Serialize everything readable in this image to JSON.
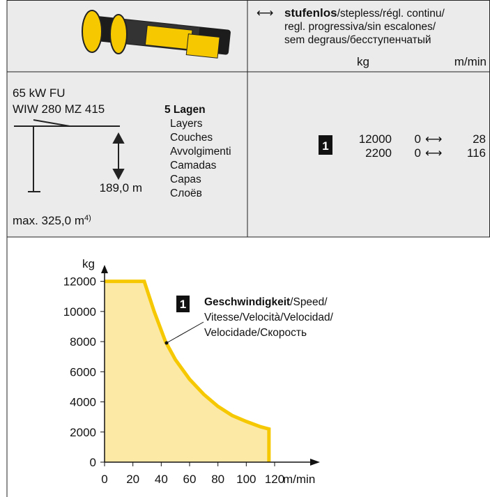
{
  "header": {
    "lead": "stufenlos",
    "lines": [
      "/stepless/régl. continu/",
      "regl. progressiva/sin escalones/",
      "sem degraus/бесступенчатый"
    ],
    "unit_load": "kg",
    "unit_speed": "m/min"
  },
  "spec": {
    "power": "65 kW FU",
    "model": "WIW 280 MZ 415",
    "layers_title": "5 Lagen",
    "layers": [
      "Layers",
      "Couches",
      "Avvolgimenti",
      "Camadas",
      "Capas",
      "Слоёв"
    ],
    "height": "189,0 m",
    "max": "max. 325,0 m",
    "max_note": "4)"
  },
  "rows": [
    {
      "badge": "1",
      "load": 12000,
      "from": 0,
      "to": 28
    },
    {
      "load": 2200,
      "from": 0,
      "to": 116
    }
  ],
  "chart_data": {
    "type": "area",
    "y_label": "kg",
    "x_label": "m/min",
    "color": "#f5c800",
    "fill": "#fde9a6",
    "x": [
      0,
      28,
      35,
      43,
      50,
      60,
      70,
      80,
      90,
      100,
      110,
      116,
      116
    ],
    "values": [
      12000,
      12000,
      10000,
      8000,
      6800,
      5500,
      4500,
      3700,
      3100,
      2700,
      2350,
      2200,
      0
    ],
    "xlim": [
      0,
      150
    ],
    "ylim": [
      0,
      13000
    ],
    "xticks": [
      0,
      20,
      40,
      60,
      80,
      100,
      120
    ],
    "yticks": [
      0,
      2000,
      4000,
      6000,
      8000,
      10000,
      12000
    ],
    "annotation": {
      "badge": "1",
      "bold": "Geschwindigkeit",
      "lines": [
        "/Speed/",
        "Vitesse/Velocità/Velocidad/",
        "Velocidade/Скорость"
      ]
    }
  }
}
